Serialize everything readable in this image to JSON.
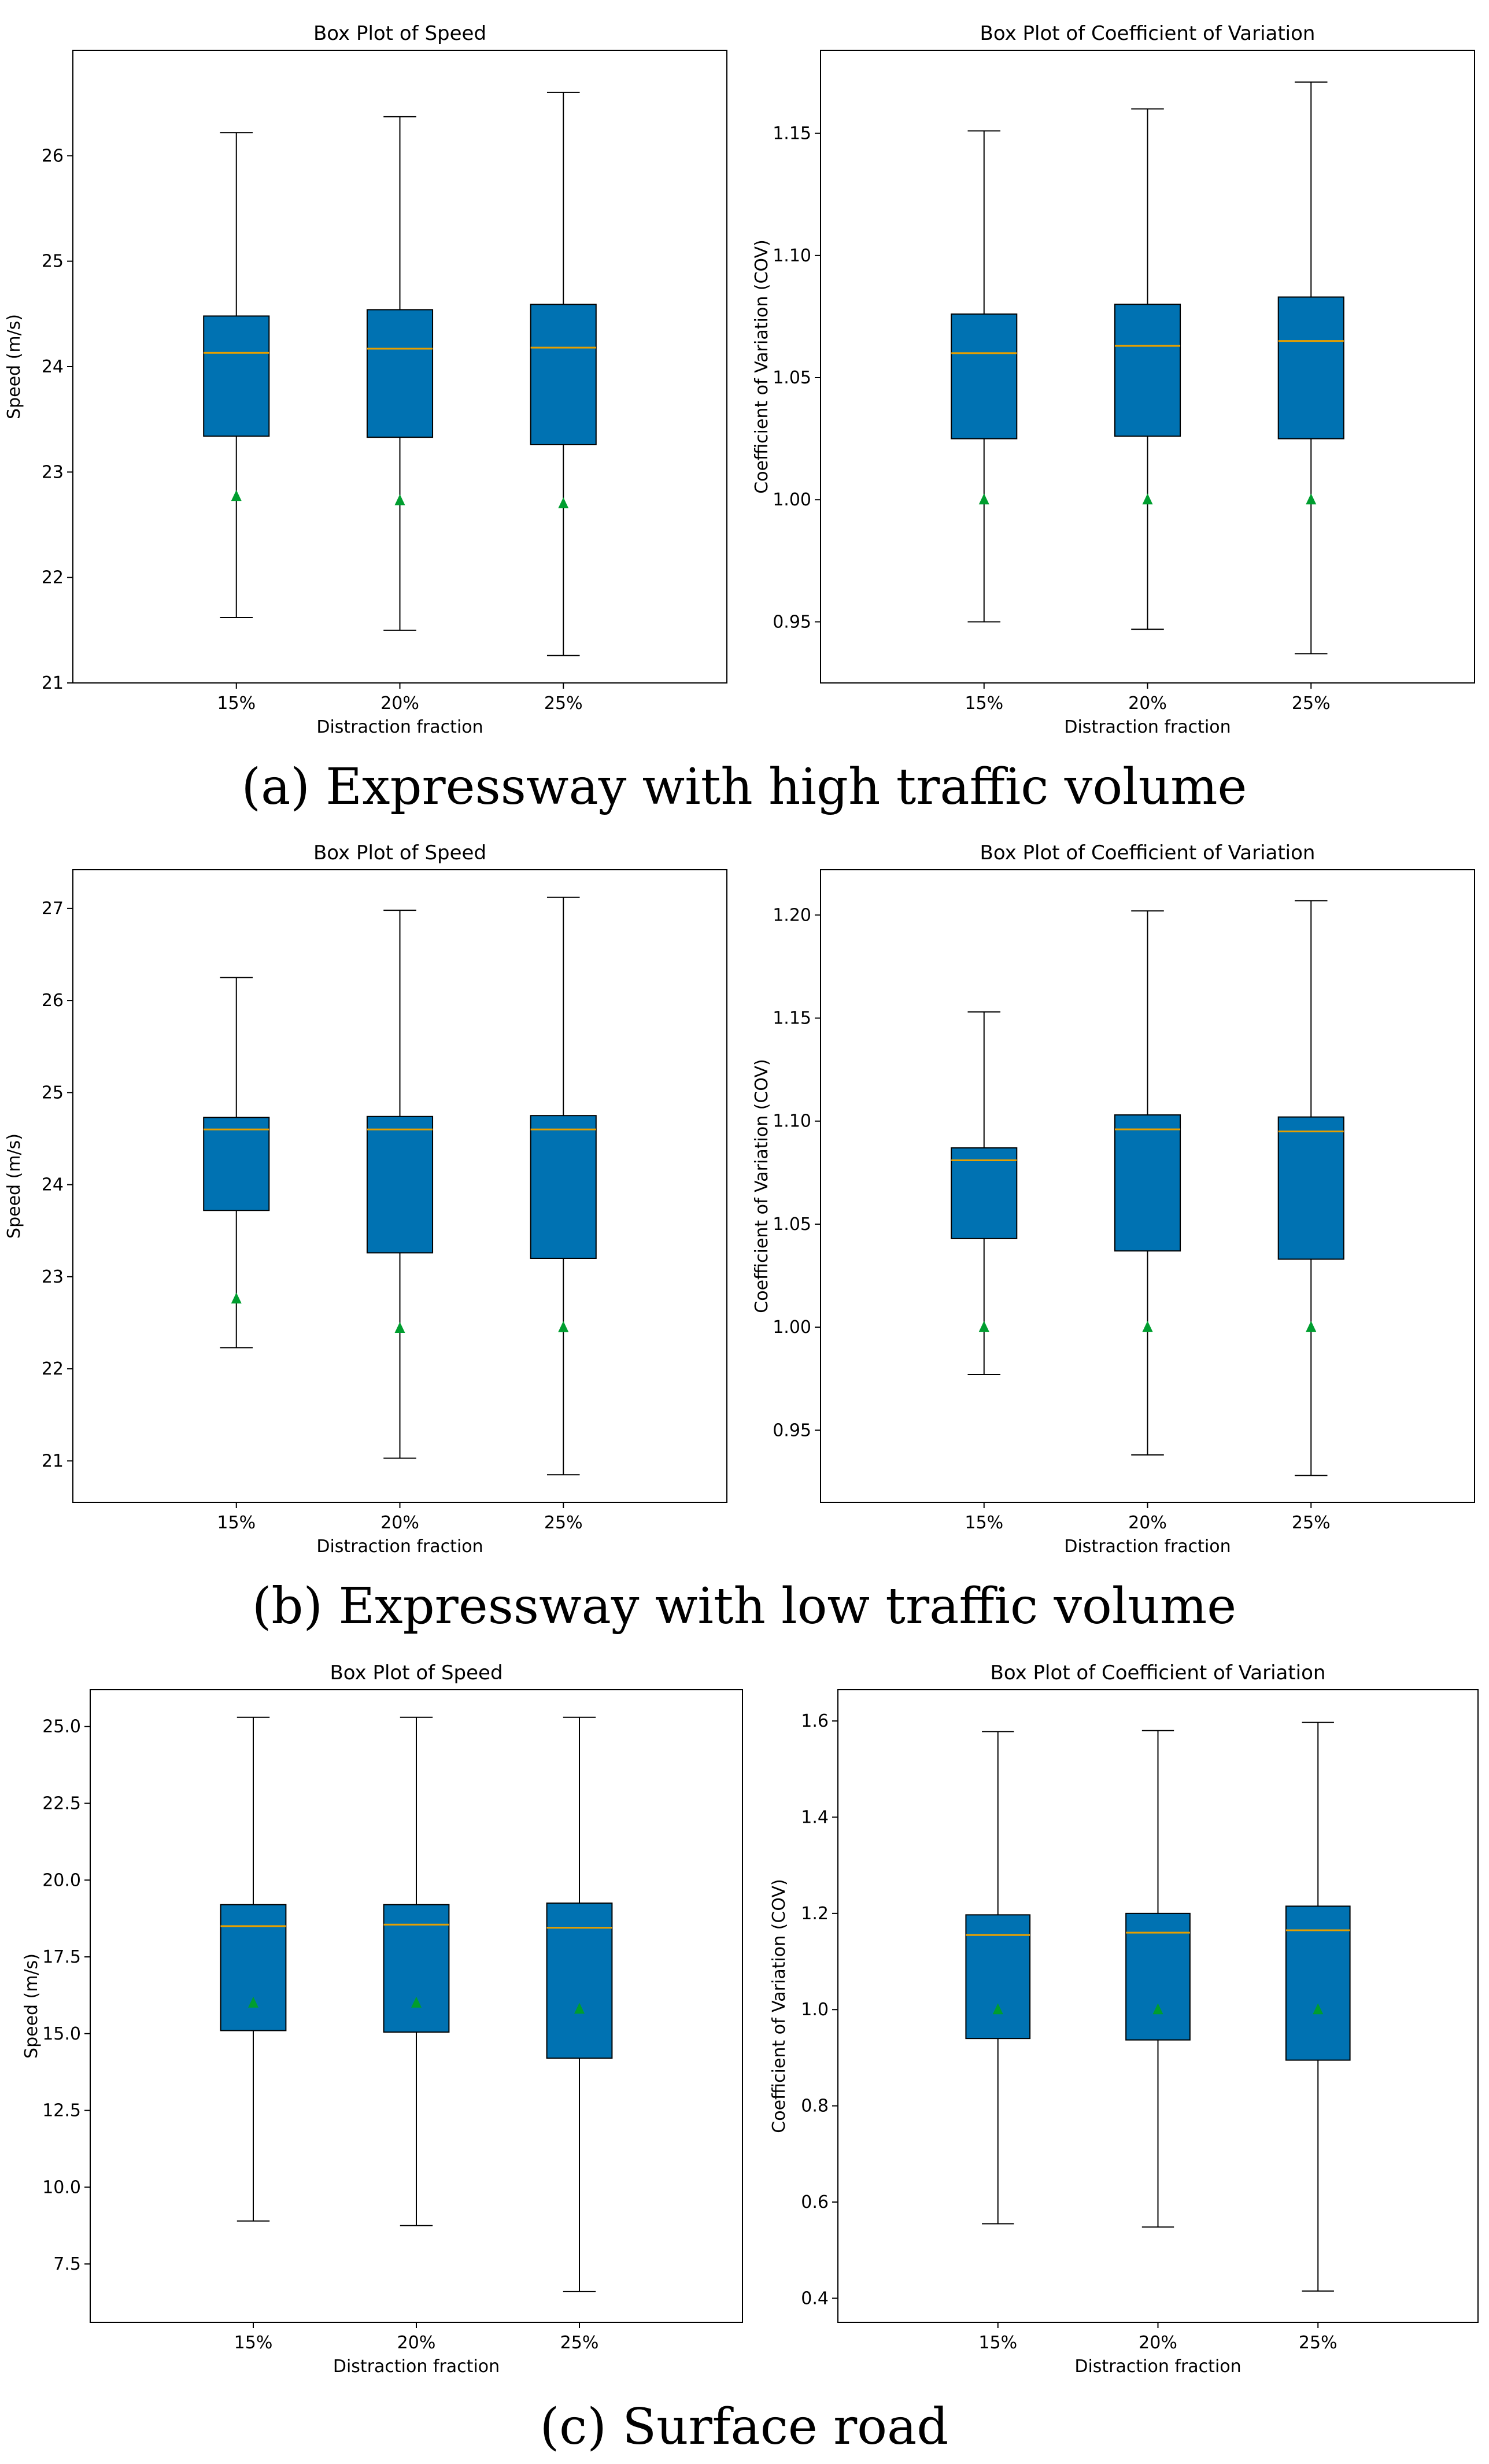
{
  "figure": {
    "captions": [
      "(a) Expressway with high traffic volume",
      "(b) Expressway with low traffic volume",
      "(c) Surface road"
    ]
  },
  "colors": {
    "box_fill": "#0072b2",
    "median": "#e69f00",
    "mean_marker": "#009e2f",
    "axis": "#000000",
    "background": "#ffffff"
  },
  "chart_data": [
    {
      "type": "box",
      "title": "Box Plot of Speed",
      "xlabel": "Distraction fraction",
      "ylabel": "Speed (m/s)",
      "categories": [
        "15%",
        "20%",
        "25%"
      ],
      "ylim": [
        21.0,
        27.0
      ],
      "yticks": [
        21,
        22,
        23,
        24,
        25,
        26
      ],
      "ytick_labels": [
        "21",
        "22",
        "23",
        "24",
        "25",
        "26"
      ],
      "boxes": [
        {
          "whisker_low": 21.62,
          "q1": 23.34,
          "median": 24.13,
          "q3": 24.48,
          "whisker_high": 26.22,
          "mean": 22.77
        },
        {
          "whisker_low": 21.5,
          "q1": 23.33,
          "median": 24.17,
          "q3": 24.54,
          "whisker_high": 26.37,
          "mean": 22.73
        },
        {
          "whisker_low": 21.26,
          "q1": 23.26,
          "median": 24.18,
          "q3": 24.59,
          "whisker_high": 26.6,
          "mean": 22.7
        }
      ]
    },
    {
      "type": "box",
      "title": "Box Plot of Coefficient of Variation",
      "xlabel": "Distraction fraction",
      "ylabel": "Coefficient of Variation (COV)",
      "categories": [
        "15%",
        "20%",
        "25%"
      ],
      "ylim": [
        0.925,
        1.184
      ],
      "yticks": [
        0.95,
        1.0,
        1.05,
        1.1,
        1.15
      ],
      "ytick_labels": [
        "0.95",
        "1.00",
        "1.05",
        "1.10",
        "1.15"
      ],
      "boxes": [
        {
          "whisker_low": 0.95,
          "q1": 1.025,
          "median": 1.06,
          "q3": 1.076,
          "whisker_high": 1.151,
          "mean": 1.0
        },
        {
          "whisker_low": 0.947,
          "q1": 1.026,
          "median": 1.063,
          "q3": 1.08,
          "whisker_high": 1.16,
          "mean": 1.0
        },
        {
          "whisker_low": 0.937,
          "q1": 1.025,
          "median": 1.065,
          "q3": 1.083,
          "whisker_high": 1.171,
          "mean": 1.0
        }
      ]
    },
    {
      "type": "box",
      "title": "Box Plot of Speed",
      "xlabel": "Distraction fraction",
      "ylabel": "Speed (m/s)",
      "categories": [
        "15%",
        "20%",
        "25%"
      ],
      "ylim": [
        20.55,
        27.42
      ],
      "yticks": [
        21,
        22,
        23,
        24,
        25,
        26,
        27
      ],
      "ytick_labels": [
        "21",
        "22",
        "23",
        "24",
        "25",
        "26",
        "27"
      ],
      "boxes": [
        {
          "whisker_low": 22.23,
          "q1": 23.72,
          "median": 24.6,
          "q3": 24.73,
          "whisker_high": 26.25,
          "mean": 22.76
        },
        {
          "whisker_low": 21.03,
          "q1": 23.26,
          "median": 24.6,
          "q3": 24.74,
          "whisker_high": 26.98,
          "mean": 22.44
        },
        {
          "whisker_low": 20.85,
          "q1": 23.2,
          "median": 24.6,
          "q3": 24.75,
          "whisker_high": 27.12,
          "mean": 22.45
        }
      ]
    },
    {
      "type": "box",
      "title": "Box Plot of Coefficient of Variation",
      "xlabel": "Distraction fraction",
      "ylabel": "Coefficient of Variation (COV)",
      "categories": [
        "15%",
        "20%",
        "25%"
      ],
      "ylim": [
        0.915,
        1.222
      ],
      "yticks": [
        0.95,
        1.0,
        1.05,
        1.1,
        1.15,
        1.2
      ],
      "ytick_labels": [
        "0.95",
        "1.00",
        "1.05",
        "1.10",
        "1.15",
        "1.20"
      ],
      "boxes": [
        {
          "whisker_low": 0.977,
          "q1": 1.043,
          "median": 1.081,
          "q3": 1.087,
          "whisker_high": 1.153,
          "mean": 1.0
        },
        {
          "whisker_low": 0.938,
          "q1": 1.037,
          "median": 1.096,
          "q3": 1.103,
          "whisker_high": 1.202,
          "mean": 1.0
        },
        {
          "whisker_low": 0.928,
          "q1": 1.033,
          "median": 1.095,
          "q3": 1.102,
          "whisker_high": 1.207,
          "mean": 1.0
        }
      ]
    },
    {
      "type": "box",
      "title": "Box Plot of Speed",
      "xlabel": "Distraction fraction",
      "ylabel": "Speed (m/s)",
      "categories": [
        "15%",
        "20%",
        "25%"
      ],
      "ylim": [
        5.6,
        26.2
      ],
      "yticks": [
        7.5,
        10.0,
        12.5,
        15.0,
        17.5,
        20.0,
        22.5,
        25.0
      ],
      "ytick_labels": [
        "7.5",
        "10.0",
        "12.5",
        "15.0",
        "17.5",
        "20.0",
        "22.5",
        "25.0"
      ],
      "boxes": [
        {
          "whisker_low": 8.9,
          "q1": 15.1,
          "median": 18.5,
          "q3": 19.2,
          "whisker_high": 25.3,
          "mean": 16.0
        },
        {
          "whisker_low": 8.75,
          "q1": 15.05,
          "median": 18.55,
          "q3": 19.2,
          "whisker_high": 25.3,
          "mean": 16.0
        },
        {
          "whisker_low": 6.6,
          "q1": 14.2,
          "median": 18.45,
          "q3": 19.25,
          "whisker_high": 25.3,
          "mean": 15.8
        }
      ]
    },
    {
      "type": "box",
      "title": "Box Plot of Coefficient of Variation",
      "xlabel": "Distraction fraction",
      "ylabel": "Coefficient of Variation (COV)",
      "categories": [
        "15%",
        "20%",
        "25%"
      ],
      "ylim": [
        0.35,
        1.665
      ],
      "yticks": [
        0.4,
        0.6,
        0.8,
        1.0,
        1.2,
        1.4,
        1.6
      ],
      "ytick_labels": [
        "0.4",
        "0.6",
        "0.8",
        "1.0",
        "1.2",
        "1.4",
        "1.6"
      ],
      "boxes": [
        {
          "whisker_low": 0.555,
          "q1": 0.94,
          "median": 1.155,
          "q3": 1.197,
          "whisker_high": 1.578,
          "mean": 1.0
        },
        {
          "whisker_low": 0.548,
          "q1": 0.937,
          "median": 1.16,
          "q3": 1.2,
          "whisker_high": 1.58,
          "mean": 1.0
        },
        {
          "whisker_low": 0.415,
          "q1": 0.895,
          "median": 1.165,
          "q3": 1.215,
          "whisker_high": 1.597,
          "mean": 1.0
        }
      ]
    }
  ]
}
